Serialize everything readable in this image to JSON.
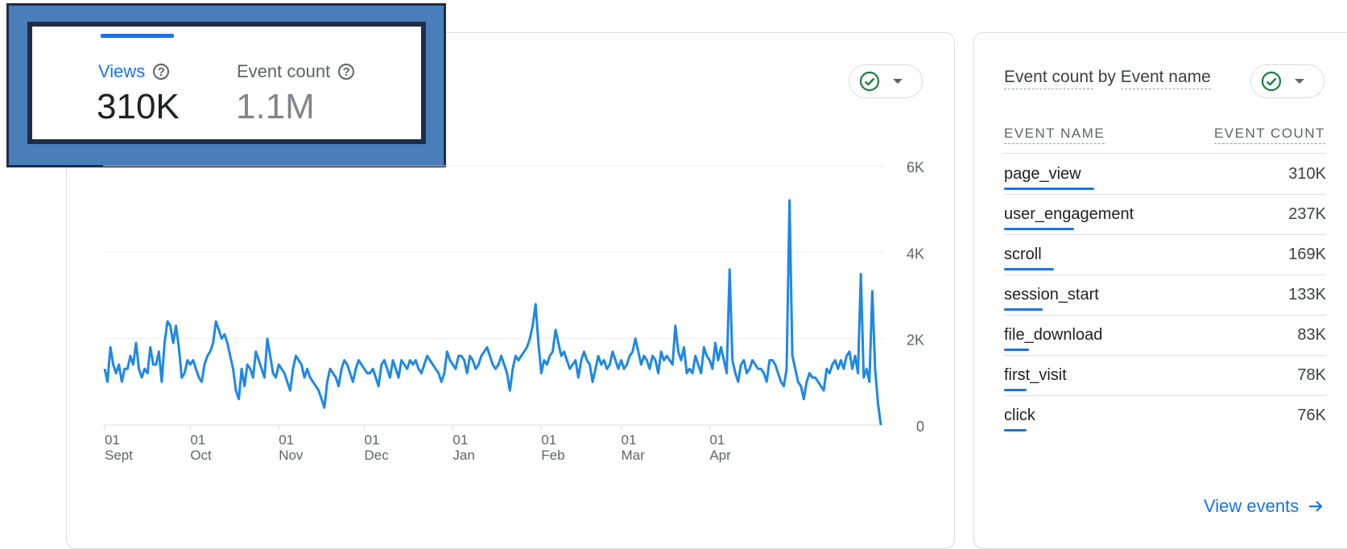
{
  "metrics": {
    "views": {
      "label": "Views",
      "value": "310K"
    },
    "event_count": {
      "label": "Event count",
      "value": "1.1M"
    }
  },
  "side_card": {
    "title_part1": "Event count",
    "title_by": " by ",
    "title_part2": "Event name",
    "col_event_name": "EVENT NAME",
    "col_event_count": "EVENT COUNT",
    "events": [
      {
        "name": "page_view",
        "count": "310K",
        "share": 0.4
      },
      {
        "name": "user_engagement",
        "count": "237K",
        "share": 0.31
      },
      {
        "name": "scroll",
        "count": "169K",
        "share": 0.22
      },
      {
        "name": "session_start",
        "count": "133K",
        "share": 0.17
      },
      {
        "name": "file_download",
        "count": "83K",
        "share": 0.11
      },
      {
        "name": "first_visit",
        "count": "78K",
        "share": 0.1
      },
      {
        "name": "click",
        "count": "76K",
        "share": 0.1
      }
    ],
    "view_events_label": "View events"
  },
  "colors": {
    "accent": "#1a73e8",
    "line": "#1e88e5",
    "check": "#188038"
  },
  "icons": {
    "help": "help-circle-icon",
    "check": "check-circle-icon",
    "arrow": "arrow-right-icon"
  },
  "chart_data": {
    "type": "line",
    "ylim": [
      0,
      6000
    ],
    "y_ticks": [
      "6K",
      "4K",
      "2K",
      "0"
    ],
    "x_ticks": [
      {
        "day": "01",
        "month": "Sept",
        "index": 0
      },
      {
        "day": "01",
        "month": "Oct",
        "index": 30
      },
      {
        "day": "01",
        "month": "Nov",
        "index": 61
      },
      {
        "day": "01",
        "month": "Dec",
        "index": 91
      },
      {
        "day": "01",
        "month": "Jan",
        "index": 122
      },
      {
        "day": "01",
        "month": "Feb",
        "index": 153
      },
      {
        "day": "01",
        "month": "Mar",
        "index": 181
      },
      {
        "day": "01",
        "month": "Apr",
        "index": 212
      }
    ],
    "series": [
      {
        "values": [
          1300,
          1000,
          1800,
          1400,
          1200,
          1400,
          1000,
          1300,
          1300,
          1600,
          1400,
          1900,
          1300,
          1100,
          1300,
          1200,
          1800,
          1400,
          1400,
          1700,
          1000,
          1900,
          2400,
          2300,
          1900,
          2300,
          1800,
          1100,
          1200,
          1500,
          1400,
          1500,
          1300,
          1100,
          1000,
          1400,
          1600,
          1700,
          1900,
          2400,
          2200,
          2000,
          2100,
          1900,
          1600,
          1300,
          800,
          600,
          1300,
          900,
          1400,
          1300,
          1100,
          1700,
          1500,
          1300,
          1100,
          2000,
          1600,
          1200,
          1100,
          1400,
          1300,
          1200,
          1000,
          800,
          1300,
          1600,
          1500,
          1400,
          1100,
          1300,
          1100,
          1000,
          900,
          800,
          600,
          400,
          1000,
          1300,
          1200,
          1100,
          900,
          1300,
          1500,
          1400,
          1200,
          1000,
          1300,
          1500,
          1400,
          1300,
          1200,
          1200,
          1300,
          1100,
          900,
          1400,
          1500,
          1300,
          1100,
          1500,
          1300,
          1100,
          1500,
          1400,
          1300,
          1500,
          1400,
          1500,
          1300,
          1200,
          1400,
          1600,
          1500,
          1400,
          1300,
          1200,
          1000,
          1200,
          1700,
          1500,
          1400,
          1300,
          1600,
          1600,
          1500,
          1200,
          1600,
          1500,
          1300,
          1400,
          1600,
          1700,
          1800,
          1600,
          1400,
          1300,
          1400,
          1600,
          1400,
          1200,
          800,
          1300,
          1600,
          1500,
          1600,
          1700,
          1800,
          2000,
          2300,
          2800,
          1900,
          1200,
          1500,
          1400,
          1600,
          1700,
          2200,
          1900,
          1600,
          1700,
          1500,
          1300,
          1400,
          1500,
          1100,
          1500,
          1700,
          1500,
          1400,
          1000,
          1300,
          1600,
          1400,
          1500,
          1300,
          1400,
          1700,
          1500,
          1300,
          1500,
          1300,
          1400,
          1600,
          1700,
          2000,
          1700,
          1400,
          1600,
          1500,
          1300,
          1600,
          1500,
          1200,
          1700,
          1500,
          1600,
          1500,
          1400,
          2300,
          1700,
          1500,
          1800,
          1200,
          1300,
          1200,
          1600,
          1400,
          1200,
          1800,
          1600,
          1500,
          1300,
          1900,
          1500,
          1800,
          1500,
          1200,
          3600,
          1500,
          1200,
          1000,
          1400,
          1500,
          1200,
          1300,
          1500,
          1400,
          1300,
          1300,
          1200,
          1000,
          1500,
          1500,
          1400,
          1200,
          1000,
          900,
          1300,
          5200,
          1600,
          1300,
          1000,
          900,
          600,
          1000,
          1200,
          1100,
          1100,
          1000,
          900,
          800,
          1300,
          1200,
          1400,
          1500,
          1300,
          1500,
          1300,
          1600,
          1700,
          1300,
          1600,
          1200,
          3500,
          1100,
          1300,
          1000,
          3100,
          1300,
          500,
          0
        ]
      }
    ]
  }
}
